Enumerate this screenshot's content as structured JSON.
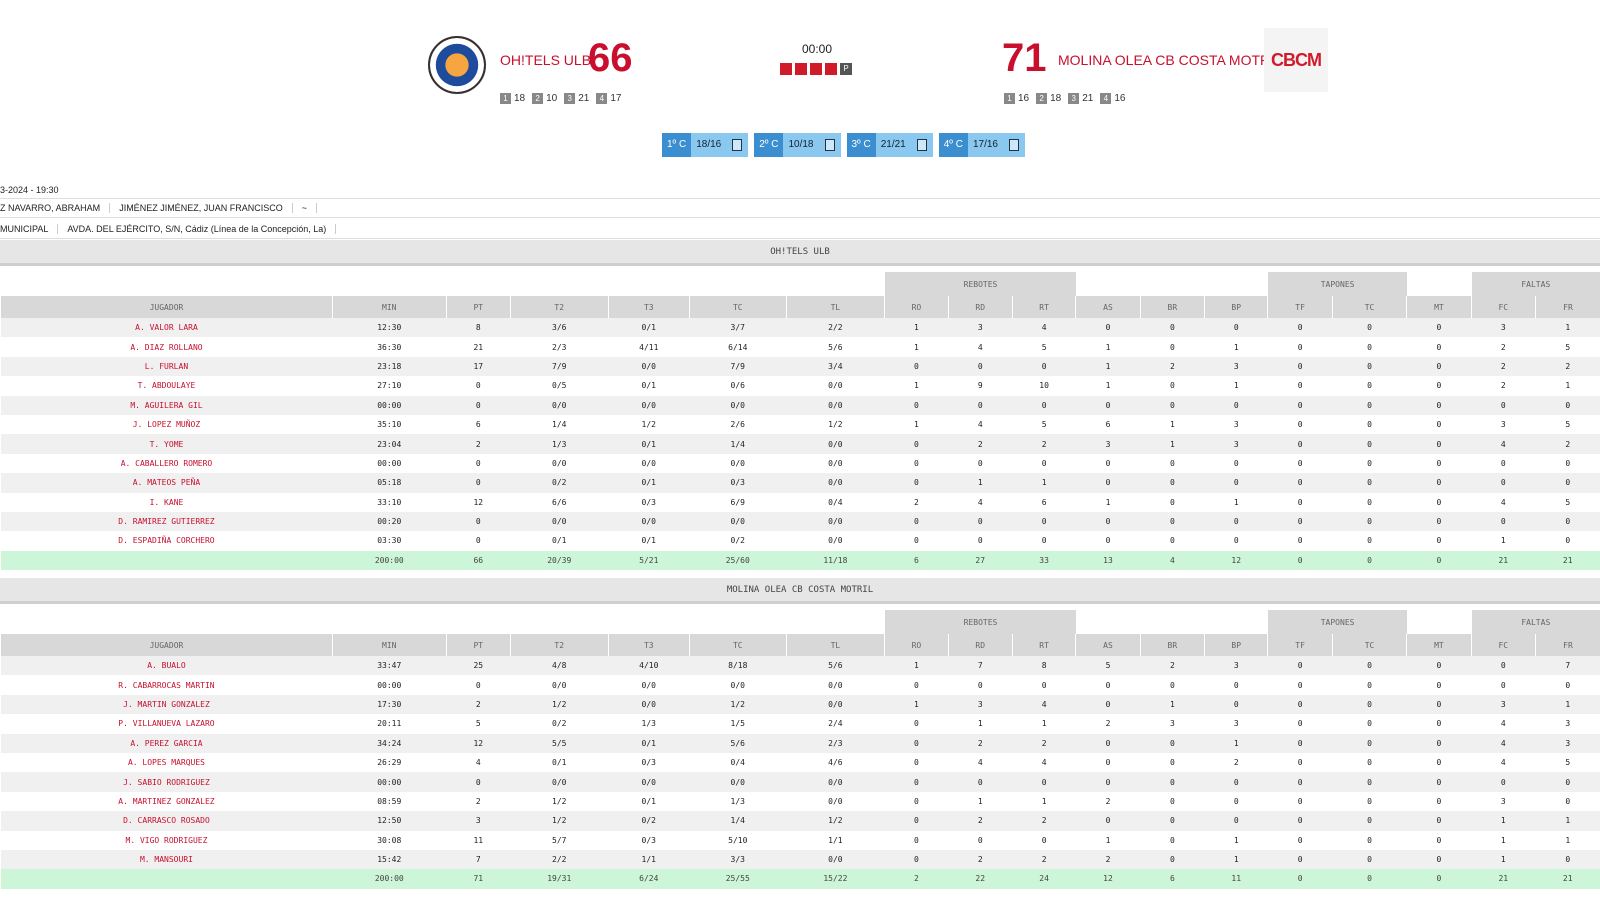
{
  "game": {
    "clock": "00:00",
    "period_label": "P",
    "home": {
      "name": "OH!TELS ULB",
      "score": "66",
      "quarters": [
        {
          "n": "1",
          "v": "18"
        },
        {
          "n": "2",
          "v": "10"
        },
        {
          "n": "3",
          "v": "21"
        },
        {
          "n": "4",
          "v": "17"
        }
      ]
    },
    "away": {
      "name": "MOLINA OLEA CB COSTA MOTRIL",
      "score": "71",
      "logo_text": "CBCM",
      "quarters": [
        {
          "n": "1",
          "v": "16"
        },
        {
          "n": "2",
          "v": "18"
        },
        {
          "n": "3",
          "v": "21"
        },
        {
          "n": "4",
          "v": "16"
        }
      ]
    },
    "quarter_tabs": [
      {
        "label": "1º C",
        "score": "18/16"
      },
      {
        "label": "2º C",
        "score": "10/18"
      },
      {
        "label": "3º C",
        "score": "21/21"
      },
      {
        "label": "4º C",
        "score": "17/16"
      }
    ]
  },
  "info": {
    "datetime": "3-2024 - 19:30",
    "referees": [
      "Z NAVARRO, ABRAHAM",
      "JIMÉNEZ JIMÉNEZ, JUAN FRANCISCO",
      "~"
    ],
    "venue": [
      "MUNICIPAL",
      "AVDA. DEL EJÉRCITO, S/N, Cádiz (Línea de la Concepción, La)"
    ]
  },
  "table_groups": {
    "rebotes": "REBOTES",
    "tapones": "TAPONES",
    "faltas": "FALTAS"
  },
  "columns": [
    "JUGADOR",
    "MIN",
    "PT",
    "T2",
    "T3",
    "TC",
    "TL",
    "RO",
    "RD",
    "RT",
    "AS",
    "BR",
    "BP",
    "TF",
    "TC",
    "MT",
    "FC",
    "FR"
  ],
  "teams": [
    {
      "title": "OH!TELS ULB",
      "players": [
        [
          "A. VALOR LARA",
          "12:30",
          "8",
          "3/6",
          "0/1",
          "3/7",
          "2/2",
          "1",
          "3",
          "4",
          "0",
          "0",
          "0",
          "0",
          "0",
          "0",
          "3",
          "1"
        ],
        [
          "A. DIAZ ROLLANO",
          "36:30",
          "21",
          "2/3",
          "4/11",
          "6/14",
          "5/6",
          "1",
          "4",
          "5",
          "1",
          "0",
          "1",
          "0",
          "0",
          "0",
          "2",
          "5"
        ],
        [
          "L. FURLAN",
          "23:18",
          "17",
          "7/9",
          "0/0",
          "7/9",
          "3/4",
          "0",
          "0",
          "0",
          "1",
          "2",
          "3",
          "0",
          "0",
          "0",
          "2",
          "2"
        ],
        [
          "T. ABDOULAYE",
          "27:10",
          "0",
          "0/5",
          "0/1",
          "0/6",
          "0/0",
          "1",
          "9",
          "10",
          "1",
          "0",
          "1",
          "0",
          "0",
          "0",
          "2",
          "1"
        ],
        [
          "M. AGUILERA GIL",
          "00:00",
          "0",
          "0/0",
          "0/0",
          "0/0",
          "0/0",
          "0",
          "0",
          "0",
          "0",
          "0",
          "0",
          "0",
          "0",
          "0",
          "0",
          "0"
        ],
        [
          "J. LOPEZ MUÑOZ",
          "35:10",
          "6",
          "1/4",
          "1/2",
          "2/6",
          "1/2",
          "1",
          "4",
          "5",
          "6",
          "1",
          "3",
          "0",
          "0",
          "0",
          "3",
          "5"
        ],
        [
          "T. YOME",
          "23:04",
          "2",
          "1/3",
          "0/1",
          "1/4",
          "0/0",
          "0",
          "2",
          "2",
          "3",
          "1",
          "3",
          "0",
          "0",
          "0",
          "4",
          "2"
        ],
        [
          "A. CABALLERO ROMERO",
          "00:00",
          "0",
          "0/0",
          "0/0",
          "0/0",
          "0/0",
          "0",
          "0",
          "0",
          "0",
          "0",
          "0",
          "0",
          "0",
          "0",
          "0",
          "0"
        ],
        [
          "A. MATEOS PEÑA",
          "05:18",
          "0",
          "0/2",
          "0/1",
          "0/3",
          "0/0",
          "0",
          "1",
          "1",
          "0",
          "0",
          "0",
          "0",
          "0",
          "0",
          "0",
          "0"
        ],
        [
          "I. KANE",
          "33:10",
          "12",
          "6/6",
          "0/3",
          "6/9",
          "0/4",
          "2",
          "4",
          "6",
          "1",
          "0",
          "1",
          "0",
          "0",
          "0",
          "4",
          "5"
        ],
        [
          "D. RAMIREZ GUTIERREZ",
          "00:20",
          "0",
          "0/0",
          "0/0",
          "0/0",
          "0/0",
          "0",
          "0",
          "0",
          "0",
          "0",
          "0",
          "0",
          "0",
          "0",
          "0",
          "0"
        ],
        [
          "D. ESPADIÑA CORCHERO",
          "03:30",
          "0",
          "0/1",
          "0/1",
          "0/2",
          "0/0",
          "0",
          "0",
          "0",
          "0",
          "0",
          "0",
          "0",
          "0",
          "0",
          "1",
          "0"
        ]
      ],
      "total": [
        "",
        "200:00",
        "66",
        "20/39",
        "5/21",
        "25/60",
        "11/18",
        "6",
        "27",
        "33",
        "13",
        "4",
        "12",
        "0",
        "0",
        "0",
        "21",
        "21"
      ]
    },
    {
      "title": "MOLINA OLEA CB COSTA MOTRIL",
      "players": [
        [
          "A. BUALO",
          "33:47",
          "25",
          "4/8",
          "4/10",
          "8/18",
          "5/6",
          "1",
          "7",
          "8",
          "5",
          "2",
          "3",
          "0",
          "0",
          "0",
          "0",
          "7"
        ],
        [
          "R. CABARROCAS MARTIN",
          "00:00",
          "0",
          "0/0",
          "0/0",
          "0/0",
          "0/0",
          "0",
          "0",
          "0",
          "0",
          "0",
          "0",
          "0",
          "0",
          "0",
          "0",
          "0"
        ],
        [
          "J. MARTIN GONZALEZ",
          "17:30",
          "2",
          "1/2",
          "0/0",
          "1/2",
          "0/0",
          "1",
          "3",
          "4",
          "0",
          "1",
          "0",
          "0",
          "0",
          "0",
          "3",
          "1"
        ],
        [
          "P. VILLANUEVA LAZARO",
          "20:11",
          "5",
          "0/2",
          "1/3",
          "1/5",
          "2/4",
          "0",
          "1",
          "1",
          "2",
          "3",
          "3",
          "0",
          "0",
          "0",
          "4",
          "3"
        ],
        [
          "A. PEREZ GARCIA",
          "34:24",
          "12",
          "5/5",
          "0/1",
          "5/6",
          "2/3",
          "0",
          "2",
          "2",
          "0",
          "0",
          "1",
          "0",
          "0",
          "0",
          "4",
          "3"
        ],
        [
          "A. LOPES MARQUES",
          "26:29",
          "4",
          "0/1",
          "0/3",
          "0/4",
          "4/6",
          "0",
          "4",
          "4",
          "0",
          "0",
          "2",
          "0",
          "0",
          "0",
          "4",
          "5"
        ],
        [
          "J. SABIO RODRIGUEZ",
          "00:00",
          "0",
          "0/0",
          "0/0",
          "0/0",
          "0/0",
          "0",
          "0",
          "0",
          "0",
          "0",
          "0",
          "0",
          "0",
          "0",
          "0",
          "0"
        ],
        [
          "A. MARTINEZ GONZALEZ",
          "08:59",
          "2",
          "1/2",
          "0/1",
          "1/3",
          "0/0",
          "0",
          "1",
          "1",
          "2",
          "0",
          "0",
          "0",
          "0",
          "0",
          "3",
          "0"
        ],
        [
          "D. CARRASCO ROSADO",
          "12:50",
          "3",
          "1/2",
          "0/2",
          "1/4",
          "1/2",
          "0",
          "2",
          "2",
          "0",
          "0",
          "0",
          "0",
          "0",
          "0",
          "1",
          "1"
        ],
        [
          "M. VIGO RODRIGUEZ",
          "30:08",
          "11",
          "5/7",
          "0/3",
          "5/10",
          "1/1",
          "0",
          "0",
          "0",
          "1",
          "0",
          "1",
          "0",
          "0",
          "0",
          "1",
          "1"
        ],
        [
          "M. MANSOURI",
          "15:42",
          "7",
          "2/2",
          "1/1",
          "3/3",
          "0/0",
          "0",
          "2",
          "2",
          "2",
          "0",
          "1",
          "0",
          "0",
          "0",
          "1",
          "0"
        ]
      ],
      "total": [
        "",
        "200:00",
        "71",
        "19/31",
        "6/24",
        "25/55",
        "15/22",
        "2",
        "22",
        "24",
        "12",
        "6",
        "11",
        "0",
        "0",
        "0",
        "21",
        "21"
      ]
    }
  ]
}
